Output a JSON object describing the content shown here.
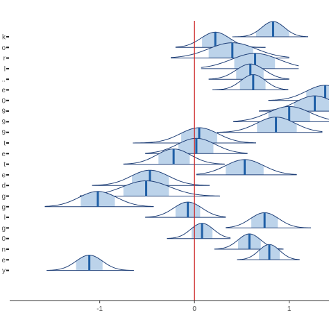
{
  "chart_data": {
    "type": "ridge-interval",
    "x_ticks": [
      "-1",
      "0",
      "1"
    ],
    "x_tick_values": [
      -1,
      0,
      1
    ],
    "xlim": [
      -1.95,
      1.42
    ],
    "reference_line": 0,
    "grid": false,
    "row_labels": [
      "k",
      "o",
      "r",
      "l",
      "..",
      "e",
      "0",
      "9",
      "9",
      "9",
      "t",
      "e",
      "t",
      "e",
      "d",
      "g",
      "g",
      "l",
      "g",
      "0",
      "n",
      "e",
      "y"
    ],
    "rows": [
      {
        "median": 0.83,
        "sd": 0.12,
        "ci_lo": 0.4,
        "ci_hi": 1.2,
        "inner_lo": 0.65,
        "inner_hi": 1.0
      },
      {
        "median": 0.22,
        "sd": 0.15,
        "ci_lo": -0.2,
        "ci_hi": 0.75,
        "inner_lo": 0.08,
        "inner_hi": 0.4
      },
      {
        "median": 0.4,
        "sd": 0.25,
        "ci_lo": -0.25,
        "ci_hi": 1.0,
        "inner_lo": 0.15,
        "inner_hi": 0.62
      },
      {
        "median": 0.64,
        "sd": 0.25,
        "ci_lo": 0.07,
        "ci_hi": 1.1,
        "inner_lo": 0.42,
        "inner_hi": 0.85
      },
      {
        "median": 0.59,
        "sd": 0.15,
        "ci_lo": 0.15,
        "ci_hi": 1.0,
        "inner_lo": 0.44,
        "inner_hi": 0.73
      },
      {
        "median": 0.62,
        "sd": 0.13,
        "ci_lo": 0.19,
        "ci_hi": 0.99,
        "inner_lo": 0.48,
        "inner_hi": 0.75
      },
      {
        "median": 1.38,
        "sd": 0.2,
        "ci_lo": 0.78,
        "ci_hi": 1.5,
        "inner_lo": 1.18,
        "inner_hi": 1.5
      },
      {
        "median": 1.27,
        "sd": 0.2,
        "ci_lo": 0.68,
        "ci_hi": 1.5,
        "inner_lo": 1.05,
        "inner_hi": 1.48
      },
      {
        "median": 1.0,
        "sd": 0.22,
        "ci_lo": 0.41,
        "ci_hi": 1.5,
        "inner_lo": 0.78,
        "inner_hi": 1.22
      },
      {
        "median": 0.86,
        "sd": 0.2,
        "ci_lo": 0.24,
        "ci_hi": 1.35,
        "inner_lo": 0.66,
        "inner_hi": 1.08
      },
      {
        "median": 0.05,
        "sd": 0.2,
        "ci_lo": -0.65,
        "ci_hi": 0.65,
        "inner_lo": -0.14,
        "inner_hi": 0.24
      },
      {
        "median": 0.02,
        "sd": 0.2,
        "ci_lo": -0.52,
        "ci_hi": 0.56,
        "inner_lo": -0.17,
        "inner_hi": 0.2
      },
      {
        "median": -0.22,
        "sd": 0.18,
        "ci_lo": -0.75,
        "ci_hi": 0.32,
        "inner_lo": -0.38,
        "inner_hi": -0.05
      },
      {
        "median": 0.53,
        "sd": 0.2,
        "ci_lo": 0.02,
        "ci_hi": 1.08,
        "inner_lo": 0.33,
        "inner_hi": 0.73
      },
      {
        "median": -0.47,
        "sd": 0.2,
        "ci_lo": -1.08,
        "ci_hi": 0.16,
        "inner_lo": -0.66,
        "inner_hi": -0.27
      },
      {
        "median": -0.51,
        "sd": 0.25,
        "ci_lo": -1.21,
        "ci_hi": 0.27,
        "inner_lo": -0.75,
        "inner_hi": -0.27
      },
      {
        "median": -1.02,
        "sd": 0.2,
        "ci_lo": -1.58,
        "ci_hi": -0.43,
        "inner_lo": -1.2,
        "inner_hi": -0.84
      },
      {
        "median": -0.07,
        "sd": 0.15,
        "ci_lo": -0.52,
        "ci_hi": 0.33,
        "inner_lo": -0.2,
        "inner_hi": 0.06
      },
      {
        "median": 0.74,
        "sd": 0.15,
        "ci_lo": 0.33,
        "ci_hi": 1.23,
        "inner_lo": 0.6,
        "inner_hi": 0.88
      },
      {
        "median": 0.08,
        "sd": 0.12,
        "ci_lo": -0.29,
        "ci_hi": 0.38,
        "inner_lo": -0.03,
        "inner_hi": 0.19
      },
      {
        "median": 0.58,
        "sd": 0.12,
        "ci_lo": 0.21,
        "ci_hi": 0.94,
        "inner_lo": 0.46,
        "inner_hi": 0.7
      },
      {
        "median": 0.79,
        "sd": 0.11,
        "ci_lo": 0.45,
        "ci_hi": 1.11,
        "inner_lo": 0.68,
        "inner_hi": 0.9
      },
      {
        "median": -1.11,
        "sd": 0.14,
        "ci_lo": -1.56,
        "ci_hi": -0.64,
        "inner_lo": -1.25,
        "inner_hi": -0.97
      }
    ],
    "colors": {
      "density_outline": "#1f3f77",
      "inner_fill": "#bcd3ea",
      "median": "#1f5fa6",
      "reference_line": "#cc2222",
      "axis": "#333333",
      "label": "#4d4d4d"
    }
  }
}
